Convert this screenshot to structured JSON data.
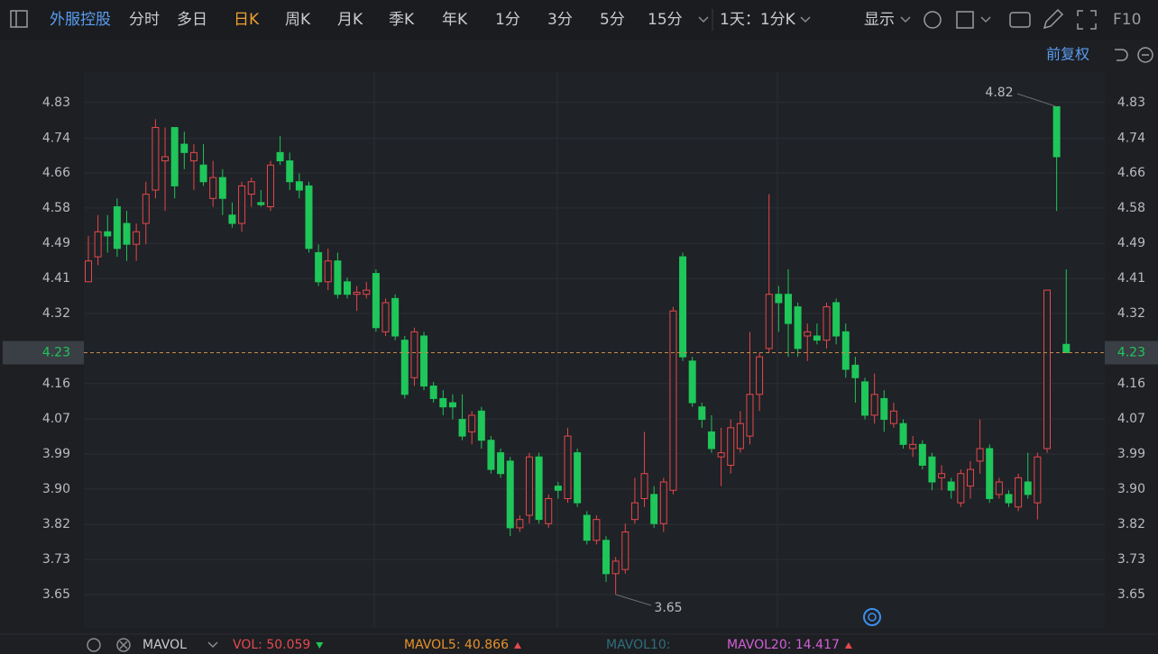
{
  "toolbar": {
    "stock": "外服控股",
    "periods": [
      "分时",
      "多日",
      "日K",
      "周K",
      "月K",
      "季K",
      "年K",
      "1分",
      "3分",
      "5分",
      "15分"
    ],
    "active": "日K",
    "range": "1天：1分K",
    "display": "显示",
    "f10": "F10",
    "adjust": "前复权"
  },
  "indicator_bar": {
    "name": "MAVOL",
    "items": [
      {
        "text": "VOL: 50.059",
        "color": "#e5484d",
        "trend": "down"
      },
      {
        "text": "MAVOL5: 40.866",
        "color": "#e8912a",
        "trend": "up"
      },
      {
        "text": "MAVOL10:",
        "color": "#2f6e7c"
      },
      {
        "text": "MAVOL20: 14.417",
        "color": "#d25fd4",
        "trend": "up"
      }
    ]
  },
  "chart_data": {
    "type": "candlestick",
    "up_color": "#e5484d",
    "down_color": "#1fc65a",
    "open": [
      4.4,
      4.46,
      4.52,
      4.58,
      4.54,
      4.49,
      4.54,
      4.62,
      4.69,
      4.77,
      4.73,
      4.69,
      4.68,
      4.6,
      4.65,
      4.56,
      4.54,
      4.61,
      4.59,
      4.58,
      4.71,
      4.69,
      4.64,
      4.63,
      4.47,
      4.4,
      4.45,
      4.4,
      4.37,
      4.37,
      4.42,
      4.28,
      4.36,
      4.26,
      4.17,
      4.27,
      4.15,
      4.12,
      4.11,
      4.07,
      4.04,
      4.09,
      4.02,
      3.99,
      3.97,
      3.81,
      3.84,
      3.98,
      3.82,
      3.91,
      3.88,
      3.99,
      3.84,
      3.78,
      3.78,
      3.7,
      3.71,
      3.83,
      3.88,
      3.89,
      3.82,
      3.9,
      4.46,
      4.21,
      4.1,
      4.04,
      3.98,
      3.96,
      4.0,
      4.03,
      4.13,
      4.24,
      4.37,
      4.37,
      4.34,
      4.27,
      4.27,
      4.26,
      4.35,
      4.28,
      4.2,
      4.16,
      4.08,
      4.12,
      4.06,
      4.06,
      4.0,
      4.01,
      3.98,
      3.93,
      3.92,
      3.87,
      3.91,
      3.97,
      4.0,
      3.89,
      3.89,
      3.86,
      3.92,
      3.87,
      4.0,
      4.82,
      4.25
    ],
    "high": [
      4.51,
      4.56,
      4.56,
      4.6,
      4.57,
      4.54,
      4.64,
      4.79,
      4.77,
      4.77,
      4.76,
      4.73,
      4.73,
      4.69,
      4.67,
      4.59,
      4.64,
      4.65,
      4.62,
      4.69,
      4.75,
      4.71,
      4.66,
      4.64,
      4.49,
      4.48,
      4.47,
      4.41,
      4.39,
      4.4,
      4.43,
      4.36,
      4.37,
      4.27,
      4.29,
      4.28,
      4.16,
      4.14,
      4.13,
      4.13,
      4.09,
      4.1,
      4.03,
      4.0,
      3.98,
      3.84,
      3.99,
      3.99,
      3.89,
      3.92,
      4.05,
      4.0,
      3.85,
      3.84,
      3.79,
      3.74,
      3.82,
      3.93,
      4.04,
      3.91,
      3.93,
      4.34,
      4.47,
      4.22,
      4.11,
      4.08,
      4.05,
      4.07,
      4.09,
      4.28,
      4.23,
      4.61,
      4.39,
      4.43,
      4.35,
      4.3,
      4.3,
      4.35,
      4.36,
      4.3,
      4.22,
      4.17,
      4.18,
      4.14,
      4.11,
      4.07,
      4.03,
      4.02,
      3.99,
      3.96,
      3.93,
      3.95,
      3.97,
      4.07,
      4.01,
      3.93,
      3.9,
      3.94,
      3.99,
      3.99,
      4.38,
      4.82,
      4.43
    ],
    "low": [
      4.4,
      4.44,
      4.47,
      4.46,
      4.45,
      4.45,
      4.49,
      4.6,
      4.57,
      4.6,
      4.67,
      4.62,
      4.63,
      4.58,
      4.56,
      4.53,
      4.52,
      4.58,
      4.58,
      4.57,
      4.68,
      4.62,
      4.6,
      4.47,
      4.39,
      4.38,
      4.36,
      4.36,
      4.33,
      4.36,
      4.28,
      4.27,
      4.26,
      4.12,
      4.15,
      4.14,
      4.11,
      4.08,
      4.07,
      4.02,
      4.01,
      4.0,
      3.94,
      3.93,
      3.79,
      3.8,
      3.82,
      3.82,
      3.81,
      3.88,
      3.87,
      3.86,
      3.77,
      3.77,
      3.68,
      3.65,
      3.7,
      3.82,
      3.86,
      3.81,
      3.8,
      3.89,
      4.21,
      4.1,
      4.05,
      3.99,
      3.91,
      3.94,
      3.99,
      4.01,
      4.09,
      4.23,
      4.28,
      4.22,
      4.22,
      4.21,
      4.25,
      4.24,
      4.25,
      4.17,
      4.11,
      4.07,
      4.06,
      4.04,
      4.05,
      4.0,
      3.98,
      3.95,
      3.9,
      3.9,
      3.88,
      3.86,
      3.88,
      3.94,
      3.87,
      3.88,
      3.86,
      3.85,
      3.88,
      3.83,
      3.99,
      4.57,
      4.23
    ],
    "close": [
      4.45,
      4.52,
      4.51,
      4.48,
      4.49,
      4.52,
      4.61,
      4.77,
      4.7,
      4.63,
      4.71,
      4.71,
      4.64,
      4.65,
      4.6,
      4.54,
      4.63,
      4.64,
      4.585,
      4.68,
      4.69,
      4.64,
      4.62,
      4.48,
      4.4,
      4.45,
      4.37,
      4.37,
      4.375,
      4.38,
      4.29,
      4.35,
      4.27,
      4.13,
      4.28,
      4.15,
      4.12,
      4.1,
      4.1,
      4.03,
      4.08,
      4.02,
      3.95,
      3.94,
      3.81,
      3.83,
      3.98,
      3.83,
      3.88,
      3.9,
      4.03,
      3.87,
      3.78,
      3.83,
      3.7,
      3.73,
      3.8,
      3.87,
      3.94,
      3.82,
      3.92,
      4.33,
      4.22,
      4.11,
      4.07,
      4.0,
      3.99,
      4.05,
      4.06,
      4.13,
      4.22,
      4.37,
      4.35,
      4.3,
      4.24,
      4.28,
      4.26,
      4.34,
      4.27,
      4.19,
      4.17,
      4.08,
      4.13,
      4.07,
      4.09,
      4.01,
      4.01,
      3.96,
      3.92,
      3.94,
      3.9,
      3.94,
      3.95,
      4.0,
      3.88,
      3.92,
      3.87,
      3.93,
      3.89,
      3.98,
      4.38,
      4.7,
      4.23
    ],
    "ylim": [
      3.57,
      4.903
    ],
    "yticks": [
      3.65,
      {
        "value": 3.734,
        "label": "3.73"
      },
      {
        "value": 3.818,
        "label": "3.82"
      },
      {
        "value": 3.903,
        "label": "3.90"
      },
      {
        "value": 3.987,
        "label": "3.99"
      },
      {
        "value": 4.071,
        "label": "4.07"
      },
      {
        "value": 4.156,
        "label": "4.16"
      },
      {
        "value": 4.324,
        "label": "4.32"
      },
      {
        "value": 4.408,
        "label": "4.41"
      },
      {
        "value": 4.492,
        "label": "4.49"
      },
      {
        "value": 4.577,
        "label": "4.58"
      },
      {
        "value": 4.661,
        "label": "4.66"
      },
      {
        "value": 4.744,
        "label": "4.74"
      },
      4.83
    ],
    "grid": true,
    "high_marker": 4.82,
    "low_marker": 3.65,
    "last_price": 4.23
  }
}
